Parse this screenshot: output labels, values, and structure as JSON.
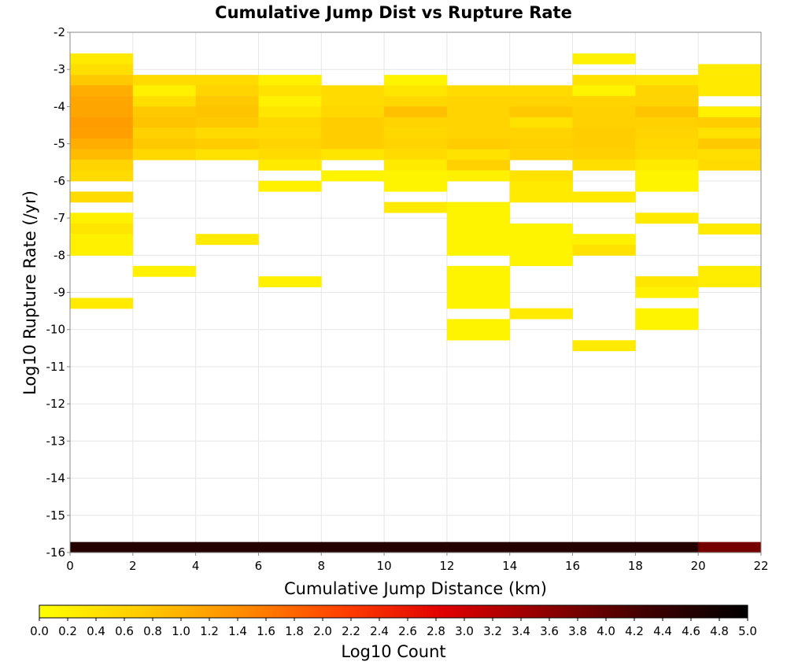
{
  "chart_data": {
    "type": "heatmap",
    "title": "Cumulative Jump Dist vs Rupture Rate",
    "xlabel": "Cumulative Jump Distance (km)",
    "ylabel": "Log10 Rupture Rate (/yr)",
    "xlim": [
      0,
      22
    ],
    "ylim": [
      -16,
      -2
    ],
    "x_ticks": [
      "0",
      "2",
      "4",
      "6",
      "8",
      "10",
      "12",
      "14",
      "16",
      "18",
      "20",
      "22"
    ],
    "y_ticks": [
      "-2",
      "-3",
      "-4",
      "-5",
      "-6",
      "-7",
      "-8",
      "-9",
      "-10",
      "-11",
      "-12",
      "-13",
      "-14",
      "-15",
      "-16"
    ],
    "bin_width_x": 2,
    "bin_height_y": 0.286,
    "colorbar": {
      "label": "Log10 Count",
      "range": [
        0,
        5
      ],
      "ticks": [
        "0.0",
        "0.2",
        "0.4",
        "0.6",
        "0.8",
        "1.0",
        "1.2",
        "1.4",
        "1.6",
        "1.8",
        "2.0",
        "2.2",
        "2.4",
        "2.6",
        "2.8",
        "3.0",
        "3.2",
        "3.4",
        "3.6",
        "3.8",
        "4.0",
        "4.2",
        "4.4",
        "4.6",
        "4.8",
        "5.0"
      ],
      "colors": [
        "#ffff00",
        "#ffcc00",
        "#ff8c00",
        "#ff4000",
        "#e00000",
        "#900000",
        "#400000",
        "#000000"
      ]
    },
    "columns": [
      {
        "x": 0,
        "cells": [
          [
            -2.71,
            0.3
          ],
          [
            -3.0,
            0.45
          ],
          [
            -3.29,
            0.75
          ],
          [
            -3.57,
            1.05
          ],
          [
            -3.86,
            1.15
          ],
          [
            -4.14,
            1.15
          ],
          [
            -4.43,
            1.25
          ],
          [
            -4.71,
            1.2
          ],
          [
            -5.0,
            1.05
          ],
          [
            -5.29,
            0.9
          ],
          [
            -5.57,
            0.6
          ],
          [
            -5.86,
            0.5
          ],
          [
            -6.43,
            0.5
          ],
          [
            -7.0,
            0.2
          ],
          [
            -7.29,
            0.35
          ],
          [
            -7.57,
            0.2
          ],
          [
            -7.86,
            0.2
          ],
          [
            -9.29,
            0.3
          ],
          [
            -15.86,
            4.6
          ]
        ]
      },
      {
        "x": 2,
        "cells": [
          [
            -3.29,
            0.5
          ],
          [
            -3.57,
            0.2
          ],
          [
            -3.86,
            0.45
          ],
          [
            -4.14,
            0.75
          ],
          [
            -4.43,
            0.8
          ],
          [
            -4.71,
            0.65
          ],
          [
            -5.0,
            0.75
          ],
          [
            -5.29,
            0.55
          ],
          [
            -8.43,
            0.2
          ],
          [
            -15.86,
            4.6
          ]
        ]
      },
      {
        "x": 4,
        "cells": [
          [
            -3.29,
            0.5
          ],
          [
            -3.57,
            0.6
          ],
          [
            -3.86,
            0.75
          ],
          [
            -4.14,
            0.8
          ],
          [
            -4.43,
            0.75
          ],
          [
            -4.71,
            0.5
          ],
          [
            -5.0,
            0.7
          ],
          [
            -5.29,
            0.4
          ],
          [
            -7.57,
            0.3
          ],
          [
            -15.86,
            4.6
          ]
        ]
      },
      {
        "x": 6,
        "cells": [
          [
            -3.29,
            0.2
          ],
          [
            -3.57,
            0.4
          ],
          [
            -3.86,
            0.2
          ],
          [
            -4.14,
            0.35
          ],
          [
            -4.43,
            0.55
          ],
          [
            -4.71,
            0.5
          ],
          [
            -5.0,
            0.6
          ],
          [
            -5.29,
            0.5
          ],
          [
            -5.57,
            0.3
          ],
          [
            -6.14,
            0.2
          ],
          [
            -8.71,
            0.2
          ],
          [
            -15.86,
            4.6
          ]
        ]
      },
      {
        "x": 8,
        "cells": [
          [
            -3.57,
            0.5
          ],
          [
            -3.86,
            0.5
          ],
          [
            -4.14,
            0.55
          ],
          [
            -4.43,
            0.7
          ],
          [
            -4.71,
            0.7
          ],
          [
            -5.0,
            0.7
          ],
          [
            -5.29,
            0.35
          ],
          [
            -5.86,
            0.15
          ],
          [
            -15.86,
            4.6
          ]
        ]
      },
      {
        "x": 10,
        "cells": [
          [
            -3.29,
            0.15
          ],
          [
            -3.57,
            0.35
          ],
          [
            -3.86,
            0.55
          ],
          [
            -4.14,
            0.85
          ],
          [
            -4.43,
            0.6
          ],
          [
            -4.71,
            0.55
          ],
          [
            -5.0,
            0.6
          ],
          [
            -5.29,
            0.5
          ],
          [
            -5.57,
            0.3
          ],
          [
            -5.86,
            0.15
          ],
          [
            -6.14,
            0.15
          ],
          [
            -6.71,
            0.3
          ],
          [
            -15.86,
            4.6
          ]
        ]
      },
      {
        "x": 12,
        "cells": [
          [
            -3.57,
            0.5
          ],
          [
            -3.86,
            0.6
          ],
          [
            -4.14,
            0.6
          ],
          [
            -4.43,
            0.6
          ],
          [
            -4.71,
            0.6
          ],
          [
            -5.0,
            0.7
          ],
          [
            -5.29,
            0.4
          ],
          [
            -5.57,
            0.65
          ],
          [
            -5.86,
            0.2
          ],
          [
            -6.71,
            0.15
          ],
          [
            -7.0,
            0.15
          ],
          [
            -7.29,
            0.15
          ],
          [
            -7.57,
            0.15
          ],
          [
            -7.86,
            0.15
          ],
          [
            -8.43,
            0.15
          ],
          [
            -8.71,
            0.15
          ],
          [
            -9.0,
            0.15
          ],
          [
            -9.29,
            0.15
          ],
          [
            -9.86,
            0.15
          ],
          [
            -10.14,
            0.15
          ],
          [
            -15.86,
            4.6
          ]
        ]
      },
      {
        "x": 14,
        "cells": [
          [
            -3.57,
            0.5
          ],
          [
            -3.86,
            0.6
          ],
          [
            -4.14,
            0.75
          ],
          [
            -4.43,
            0.4
          ],
          [
            -4.71,
            0.6
          ],
          [
            -5.0,
            0.65
          ],
          [
            -5.29,
            0.6
          ],
          [
            -5.86,
            0.4
          ],
          [
            -6.14,
            0.3
          ],
          [
            -6.43,
            0.3
          ],
          [
            -7.29,
            0.15
          ],
          [
            -7.57,
            0.15
          ],
          [
            -7.86,
            0.15
          ],
          [
            -8.14,
            0.15
          ],
          [
            -9.57,
            0.3
          ],
          [
            -15.86,
            4.6
          ]
        ]
      },
      {
        "x": 16,
        "cells": [
          [
            -2.71,
            0.2
          ],
          [
            -3.29,
            0.4
          ],
          [
            -3.57,
            0.15
          ],
          [
            -3.86,
            0.6
          ],
          [
            -4.14,
            0.65
          ],
          [
            -4.43,
            0.65
          ],
          [
            -4.71,
            0.7
          ],
          [
            -5.0,
            0.7
          ],
          [
            -5.29,
            0.65
          ],
          [
            -5.57,
            0.45
          ],
          [
            -6.43,
            0.3
          ],
          [
            -7.57,
            0.2
          ],
          [
            -7.86,
            0.4
          ],
          [
            -10.43,
            0.3
          ],
          [
            -15.86,
            4.6
          ]
        ]
      },
      {
        "x": 18,
        "cells": [
          [
            -3.29,
            0.35
          ],
          [
            -3.57,
            0.6
          ],
          [
            -3.86,
            0.6
          ],
          [
            -4.14,
            0.8
          ],
          [
            -4.43,
            0.65
          ],
          [
            -4.71,
            0.6
          ],
          [
            -5.0,
            0.55
          ],
          [
            -5.29,
            0.5
          ],
          [
            -5.57,
            0.3
          ],
          [
            -5.86,
            0.15
          ],
          [
            -6.14,
            0.15
          ],
          [
            -7.0,
            0.3
          ],
          [
            -8.71,
            0.35
          ],
          [
            -9.0,
            0.2
          ],
          [
            -9.57,
            0.15
          ],
          [
            -9.86,
            0.15
          ],
          [
            -15.86,
            4.6
          ]
        ]
      },
      {
        "x": 20,
        "cells": [
          [
            -3.0,
            0.3
          ],
          [
            -3.29,
            0.3
          ],
          [
            -3.57,
            0.3
          ],
          [
            -4.14,
            0.2
          ],
          [
            -4.43,
            0.7
          ],
          [
            -4.71,
            0.4
          ],
          [
            -5.0,
            0.75
          ],
          [
            -5.29,
            0.45
          ],
          [
            -5.57,
            0.5
          ],
          [
            -7.29,
            0.3
          ],
          [
            -8.43,
            0.25
          ],
          [
            -8.71,
            0.25
          ],
          [
            -15.86,
            3.8
          ]
        ]
      }
    ]
  }
}
